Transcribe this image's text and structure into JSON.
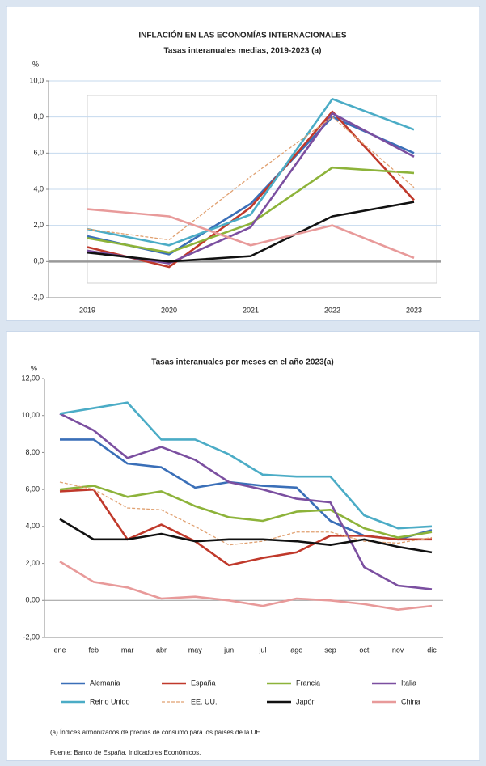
{
  "chart_data": [
    {
      "type": "line",
      "title": "INFLACIÓN EN LAS ECONOMÍAS INTERNACIONALES",
      "subtitle": "Tasas interanuales medias, 2019-2023 (a)",
      "y_label": "%",
      "categories": [
        "2019",
        "2020",
        "2021",
        "2022",
        "2023"
      ],
      "ylim": [
        -2,
        10
      ],
      "yticks": [
        {
          "value": -2,
          "label": "-2,0"
        },
        {
          "value": 0,
          "label": "0,0"
        },
        {
          "value": 2,
          "label": "2,0"
        },
        {
          "value": 4,
          "label": "4,0"
        },
        {
          "value": 6,
          "label": "6,0"
        },
        {
          "value": 8,
          "label": "8,0"
        },
        {
          "value": 10,
          "label": "10,0"
        }
      ],
      "grid": true,
      "series": [
        {
          "color": "#3a6fb8",
          "values": [
            1.4,
            0.4,
            3.2,
            8.0,
            6.0
          ]
        },
        {
          "color": "#c0392b",
          "values": [
            0.8,
            -0.3,
            3.0,
            8.3,
            3.4
          ]
        },
        {
          "color": "#8db33a",
          "values": [
            1.3,
            0.5,
            2.1,
            5.2,
            4.9
          ]
        },
        {
          "color": "#7b4fa0",
          "values": [
            0.6,
            -0.1,
            1.9,
            8.2,
            5.8
          ]
        },
        {
          "color": "#4bacc6",
          "values": [
            1.8,
            0.9,
            2.6,
            9.0,
            7.3
          ]
        },
        {
          "color": "#e0a070",
          "dash": true,
          "values": [
            1.8,
            1.2,
            4.7,
            8.0,
            4.1
          ]
        },
        {
          "color": "#111111",
          "values": [
            0.5,
            0.0,
            0.3,
            2.5,
            3.3
          ]
        },
        {
          "color": "#e89a9a",
          "values": [
            2.9,
            2.5,
            0.9,
            2.0,
            0.2
          ]
        }
      ]
    },
    {
      "type": "line",
      "title": "Tasas interanuales por meses en el año 2023(a)",
      "y_label": "%",
      "categories": [
        "ene",
        "feb",
        "mar",
        "abr",
        "may",
        "jun",
        "jul",
        "ago",
        "sep",
        "oct",
        "nov",
        "dic"
      ],
      "ylim": [
        -2,
        12
      ],
      "yticks": [
        {
          "value": -2,
          "label": "-2,00"
        },
        {
          "value": 0,
          "label": "0,00"
        },
        {
          "value": 2,
          "label": "2,00"
        },
        {
          "value": 4,
          "label": "4,00"
        },
        {
          "value": 6,
          "label": "6,00"
        },
        {
          "value": 8,
          "label": "8,00"
        },
        {
          "value": 10,
          "label": "10,00"
        },
        {
          "value": 12,
          "label": "12,00"
        }
      ],
      "grid": false,
      "legend": "bottom",
      "series": [
        {
          "name": "Alemania",
          "color": "#3a6fb8",
          "values": [
            8.7,
            8.7,
            7.4,
            7.2,
            6.1,
            6.4,
            6.2,
            6.1,
            4.3,
            3.5,
            3.3,
            3.8
          ]
        },
        {
          "name": "España",
          "color": "#c0392b",
          "values": [
            5.9,
            6.0,
            3.3,
            4.1,
            3.2,
            1.9,
            2.3,
            2.6,
            3.5,
            3.5,
            3.3,
            3.3
          ]
        },
        {
          "name": "Francia",
          "color": "#8db33a",
          "values": [
            6.0,
            6.2,
            5.6,
            5.9,
            5.1,
            4.5,
            4.3,
            4.8,
            4.9,
            3.9,
            3.4,
            3.7
          ]
        },
        {
          "name": "Italia",
          "color": "#7b4fa0",
          "values": [
            10.1,
            9.2,
            7.7,
            8.3,
            7.6,
            6.4,
            6.0,
            5.5,
            5.3,
            1.8,
            0.8,
            0.6
          ]
        },
        {
          "name": "Reino Unido",
          "color": "#4bacc6",
          "values": [
            10.1,
            10.4,
            10.7,
            8.7,
            8.7,
            7.9,
            6.8,
            6.7,
            6.7,
            4.6,
            3.9,
            4.0
          ]
        },
        {
          "name": "EE. UU.",
          "color": "#e0a070",
          "dash": true,
          "values": [
            6.4,
            6.0,
            5.0,
            4.9,
            4.0,
            3.0,
            3.2,
            3.7,
            3.7,
            3.2,
            3.1,
            3.4
          ]
        },
        {
          "name": "Japón",
          "color": "#111111",
          "values": [
            4.4,
            3.3,
            3.3,
            3.6,
            3.2,
            3.3,
            3.3,
            3.2,
            3.0,
            3.3,
            2.9,
            2.6
          ]
        },
        {
          "name": "China",
          "color": "#e89a9a",
          "values": [
            2.1,
            1.0,
            0.7,
            0.1,
            0.2,
            0.0,
            -0.3,
            0.1,
            0.0,
            -0.2,
            -0.5,
            -0.3
          ]
        }
      ],
      "notes": [
        "(a) Índices armonizados de precios de consumo para los países de la UE.",
        "Fuente: Banco de España. Indicadores Económicos."
      ]
    }
  ]
}
